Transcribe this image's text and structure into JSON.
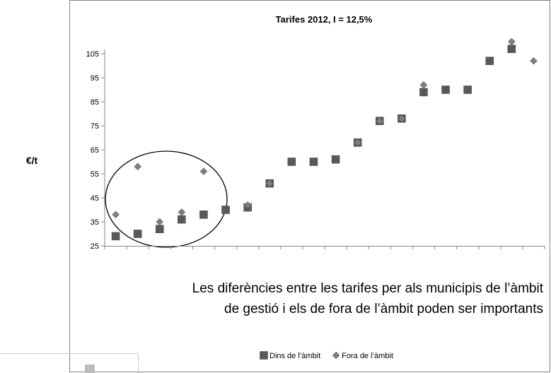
{
  "chart_data": {
    "type": "scatter",
    "title": "Tarifes 2012, I = 12,5%",
    "y_label": "€/t",
    "annotation": [
      "Les diferències entre les tarifes per als municipis de l’àmbit",
      "de gestió i els de fora de l’àmbit poden ser importants"
    ],
    "categories": [
      null,
      null,
      null,
      null,
      null,
      null,
      null,
      null,
      null,
      null,
      null,
      null,
      null,
      null,
      null,
      null,
      null,
      null,
      null,
      null
    ],
    "series": [
      {
        "name": "Dins de l’àmbit",
        "color": "#595959",
        "marker": "square",
        "values": [
          29,
          30,
          32,
          36,
          38,
          40,
          41,
          51,
          60,
          60,
          61,
          68,
          77,
          78,
          89,
          90,
          90,
          102,
          107,
          null
        ]
      },
      {
        "name": "Fora de l’àmbit",
        "color": "#7f7f7f",
        "marker": "diamond",
        "values": [
          38,
          58,
          35,
          39,
          56,
          null,
          42,
          51,
          null,
          null,
          null,
          68,
          77,
          78,
          92,
          null,
          null,
          null,
          110,
          102
        ]
      }
    ],
    "ylim": [
      25,
      105
    ],
    "yticks": [
      25,
      35,
      45,
      55,
      65,
      75,
      85,
      95,
      105
    ],
    "grid": false,
    "legend": "bottom"
  }
}
